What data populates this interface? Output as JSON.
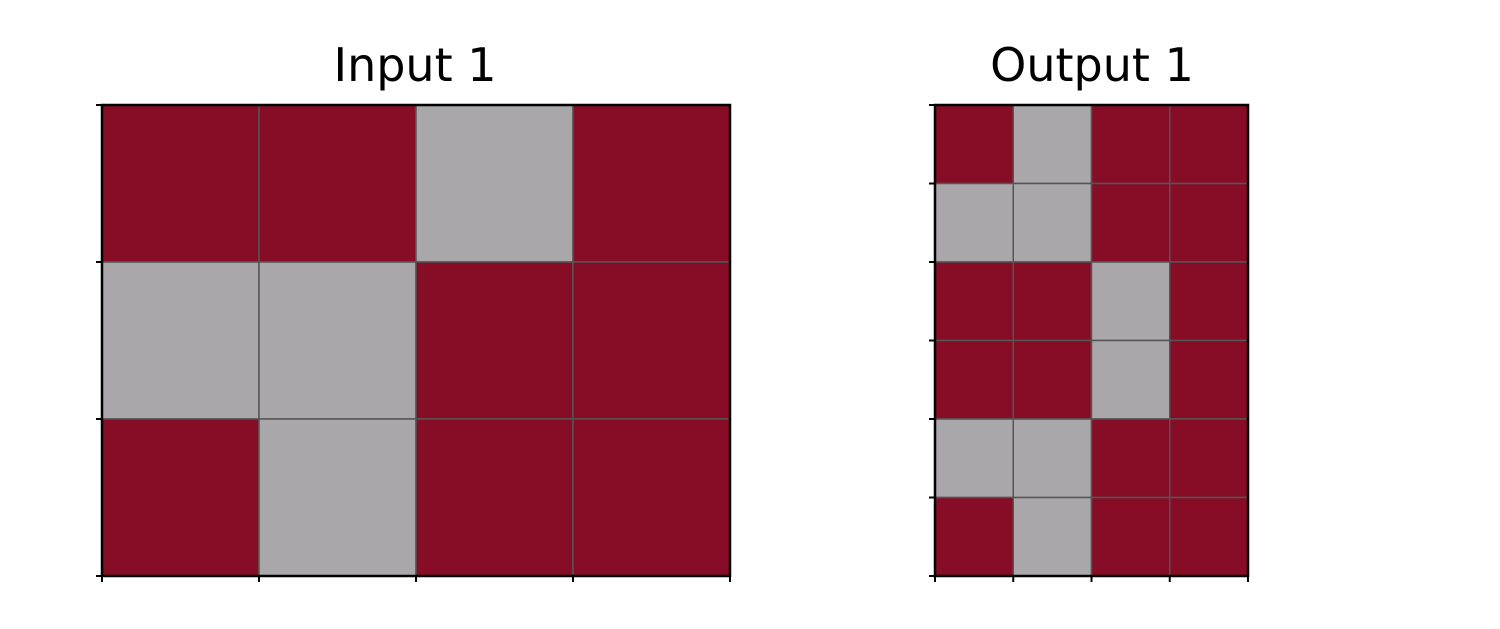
{
  "colors": {
    "red": "#870C25",
    "gray": "#A9A7AA",
    "grid": "#555555"
  },
  "panels": [
    {
      "title": "Input 1",
      "grid": [
        [
          "red",
          "red",
          "gray",
          "red"
        ],
        [
          "gray",
          "gray",
          "red",
          "red"
        ],
        [
          "red",
          "gray",
          "red",
          "red"
        ]
      ]
    },
    {
      "title": "Output 1",
      "grid": [
        [
          "red",
          "gray",
          "red",
          "red"
        ],
        [
          "gray",
          "gray",
          "red",
          "red"
        ],
        [
          "red",
          "red",
          "gray",
          "red"
        ],
        [
          "red",
          "red",
          "gray",
          "red"
        ],
        [
          "gray",
          "gray",
          "red",
          "red"
        ],
        [
          "red",
          "gray",
          "red",
          "red"
        ]
      ]
    }
  ]
}
